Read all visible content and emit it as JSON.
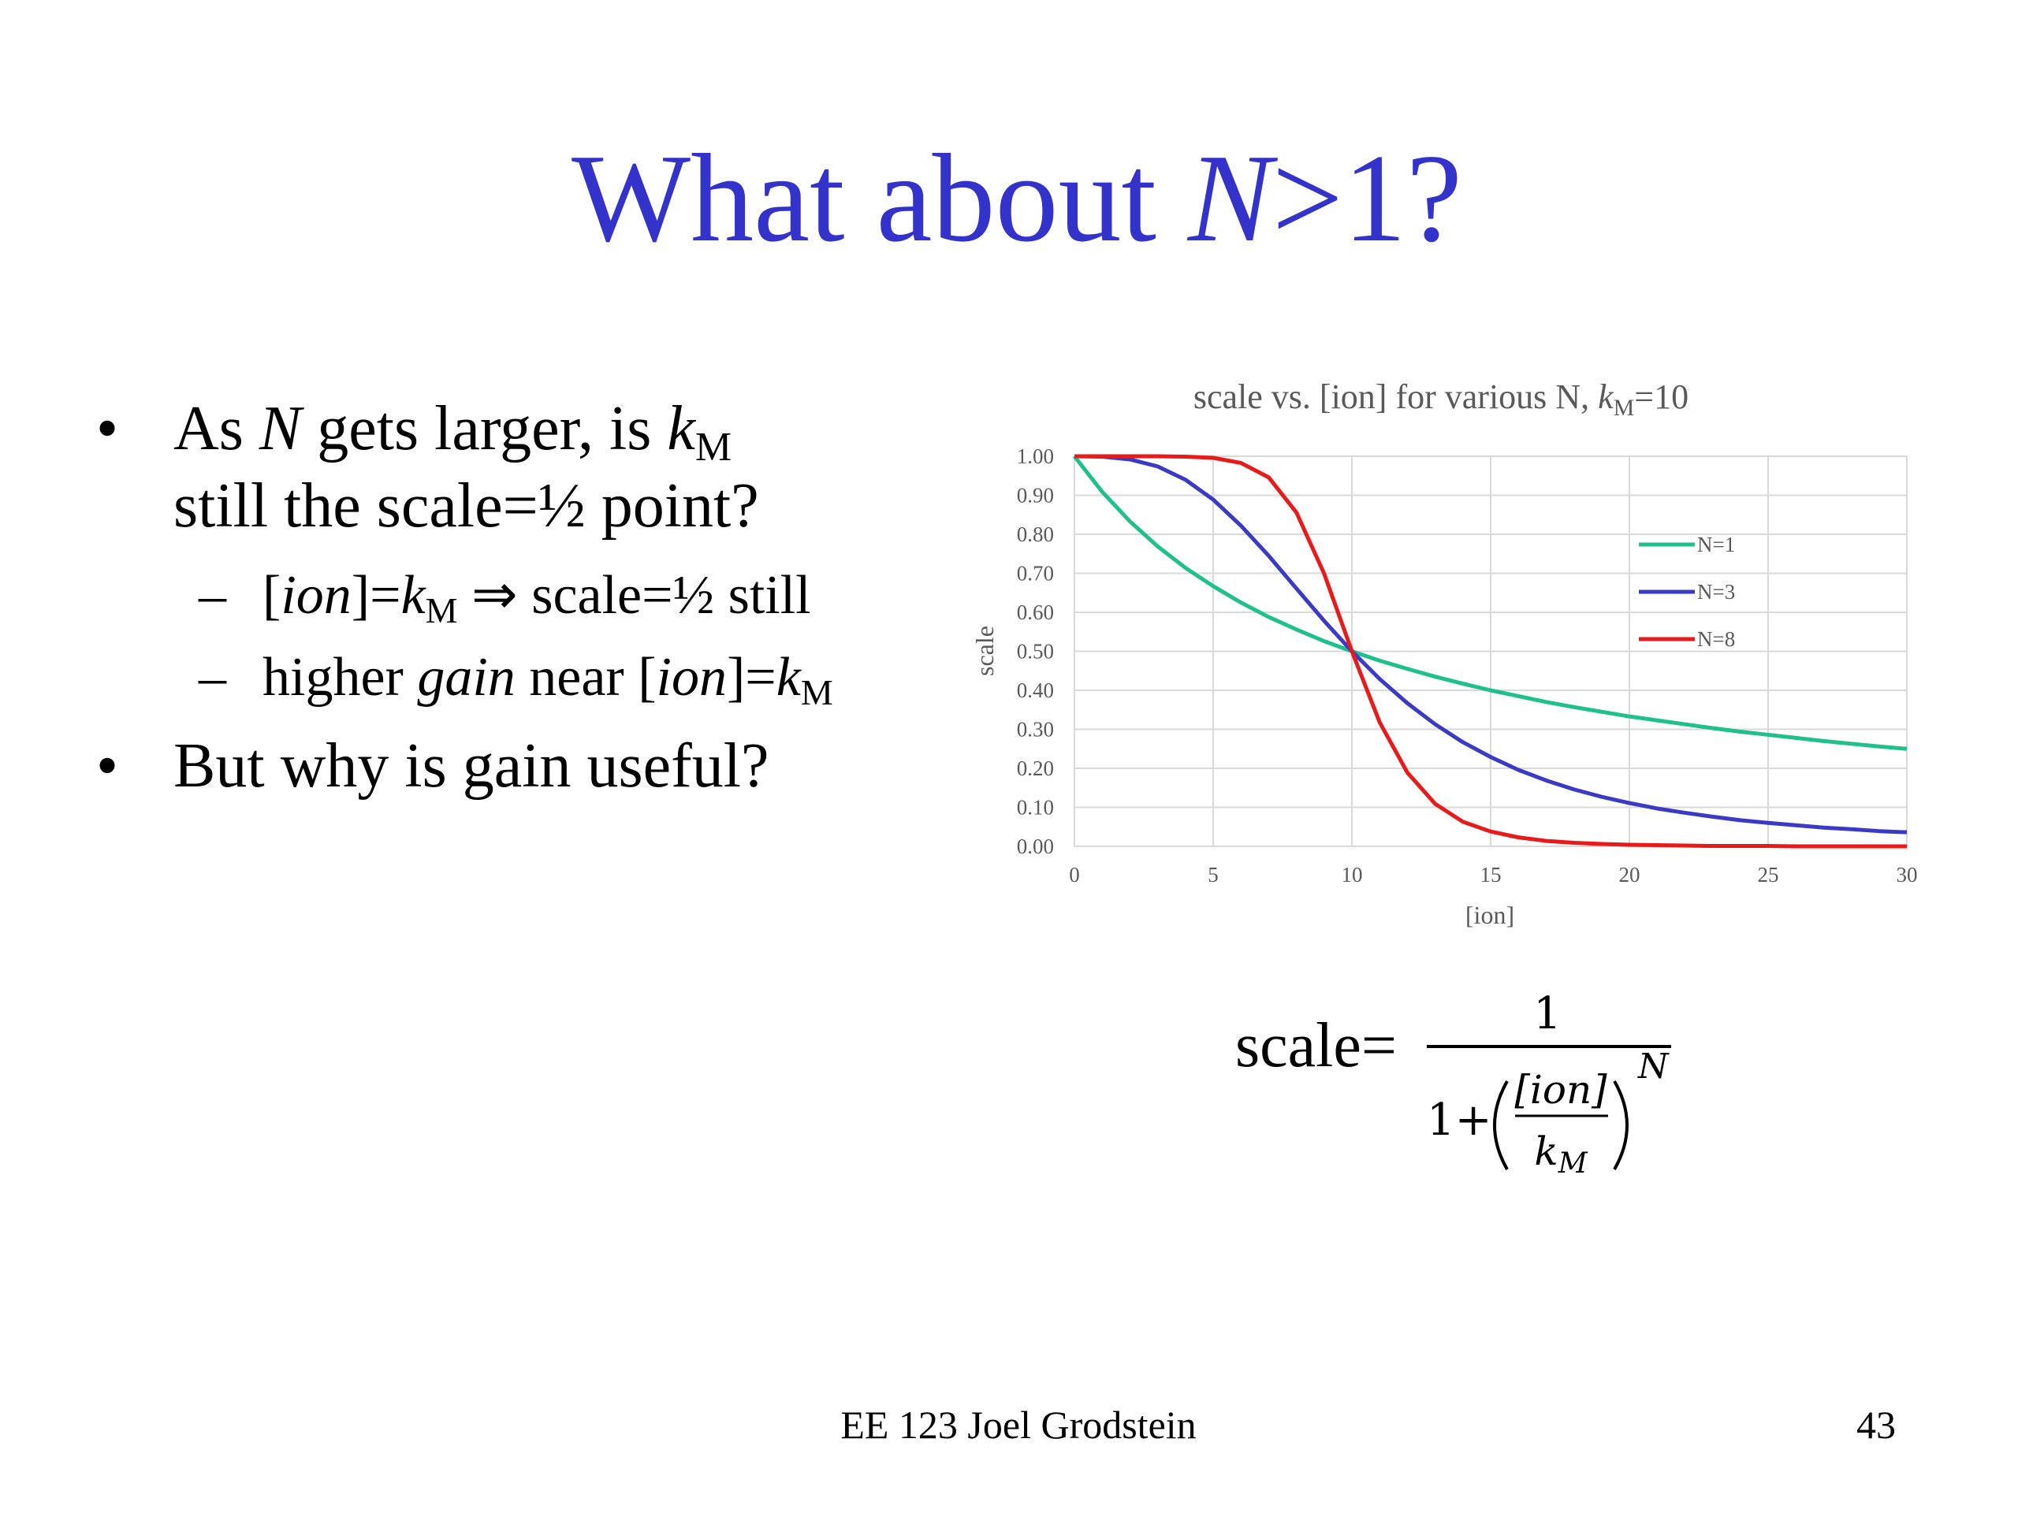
{
  "slide": {
    "title": [
      "What about ",
      "N",
      ">1?"
    ],
    "bullets": [
      {
        "line1": [
          "As ",
          "N",
          " gets larger, is ",
          "k",
          "M"
        ],
        "line2": "still the scale=½ point?",
        "marker": "•",
        "sub": [
          {
            "marker": "–",
            "parts": [
              "[",
              "ion",
              "]=",
              "k",
              "M",
              " ⇒ scale=½ still"
            ]
          },
          {
            "marker": "–",
            "parts": [
              "higher ",
              "gain",
              " near [",
              "ion",
              "]=",
              "k",
              "M"
            ]
          }
        ]
      },
      {
        "marker": "•",
        "line1": [
          "But why is gain useful?"
        ]
      }
    ],
    "formula": {
      "lhs": "scale=",
      "numerator": "1",
      "denominator_prefix": "1+",
      "inner_numerator": "[ion]",
      "inner_denominator": "k",
      "inner_denominator_sub": "M",
      "exponent": "N"
    },
    "footer": "EE 123 Joel Grodstein",
    "page_number": "43"
  },
  "chart_data": {
    "type": "line",
    "title": [
      "scale vs. [ion] for various N, ",
      "k",
      "M",
      "=10"
    ],
    "x_label": "[ion]",
    "y_label": "scale",
    "x": [
      0,
      1,
      2,
      3,
      4,
      5,
      6,
      7,
      8,
      9,
      10,
      11,
      12,
      13,
      14,
      15,
      16,
      17,
      18,
      19,
      20,
      21,
      22,
      23,
      24,
      25,
      26,
      27,
      28,
      29,
      30
    ],
    "series": [
      {
        "name": "N=1",
        "color": "#1fc08c",
        "values": [
          1,
          0.909,
          0.833,
          0.769,
          0.714,
          0.667,
          0.625,
          0.588,
          0.556,
          0.526,
          0.5,
          0.476,
          0.455,
          0.435,
          0.417,
          0.4,
          0.385,
          0.37,
          0.357,
          0.345,
          0.333,
          0.323,
          0.313,
          0.303,
          0.294,
          0.286,
          0.278,
          0.27,
          0.263,
          0.256,
          0.25
        ]
      },
      {
        "name": "N=3",
        "color": "#3a3ac6",
        "values": [
          1,
          0.999,
          0.992,
          0.974,
          0.94,
          0.889,
          0.822,
          0.745,
          0.661,
          0.578,
          0.5,
          0.429,
          0.367,
          0.313,
          0.267,
          0.229,
          0.196,
          0.169,
          0.146,
          0.127,
          0.111,
          0.097,
          0.086,
          0.076,
          0.067,
          0.06,
          0.054,
          0.048,
          0.044,
          0.039,
          0.036
        ]
      },
      {
        "name": "N=8",
        "color": "#e81a1a",
        "values": [
          1,
          1,
          1,
          1,
          0.999,
          0.996,
          0.983,
          0.946,
          0.856,
          0.699,
          0.5,
          0.318,
          0.189,
          0.109,
          0.063,
          0.038,
          0.023,
          0.014,
          0.009,
          0.006,
          0.004,
          0.003,
          0.002,
          0.001,
          0.001,
          0.001,
          0,
          0,
          0,
          0,
          0
        ]
      }
    ],
    "xlim": [
      0,
      30
    ],
    "ylim": [
      0,
      1
    ],
    "xticks": [
      0,
      5,
      10,
      15,
      20,
      25,
      30
    ],
    "yticks": [
      {
        "value": 0,
        "label": "0.00"
      },
      {
        "value": 0.1,
        "label": "0.10"
      },
      {
        "value": 0.2,
        "label": "0.20"
      },
      {
        "value": 0.3,
        "label": "0.30"
      },
      {
        "value": 0.4,
        "label": "0.40"
      },
      {
        "value": 0.5,
        "label": "0.50"
      },
      {
        "value": 0.6,
        "label": "0.60"
      },
      {
        "value": 0.7,
        "label": "0.70"
      },
      {
        "value": 0.8,
        "label": "0.80"
      },
      {
        "value": 0.9,
        "label": "0.90"
      },
      {
        "value": 1,
        "label": "1.00"
      }
    ],
    "grid": true
  }
}
